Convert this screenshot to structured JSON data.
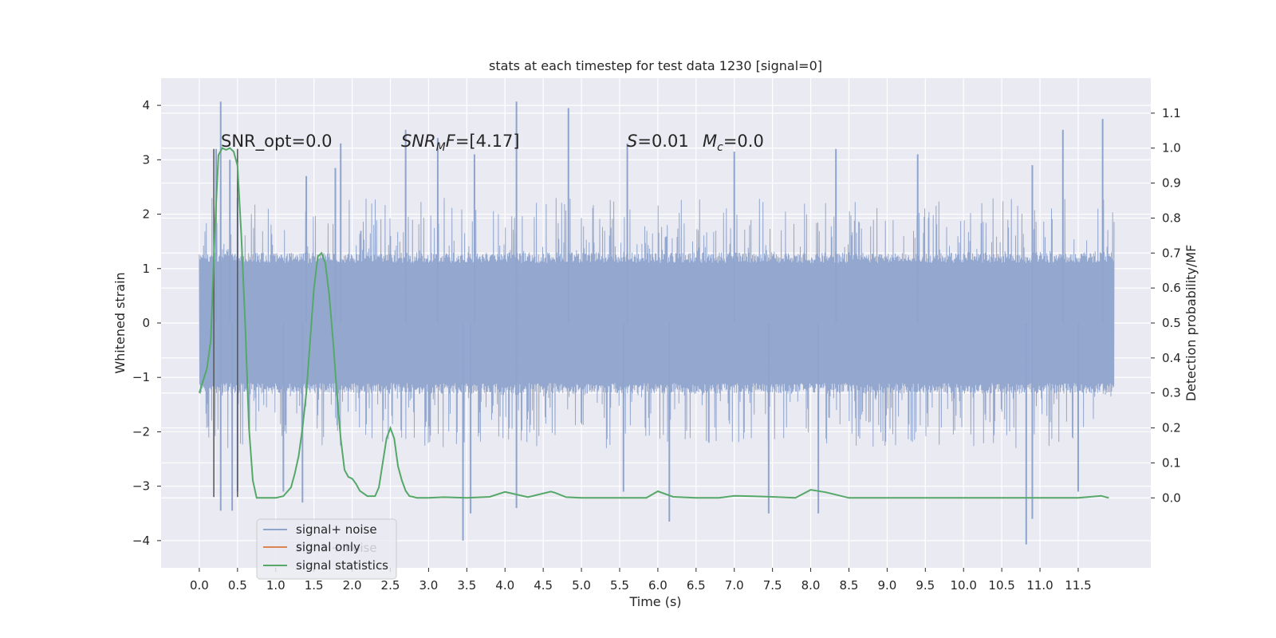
{
  "chart_data": {
    "type": "line",
    "title": "stats at each timestep for test data 1230 [signal=0]",
    "xlabel": "Time (s)",
    "ylabel_left": "Whitened strain",
    "ylabel_right": "Detection probability/MF",
    "xlim": [
      -0.5,
      12.45
    ],
    "ylim_left": [
      -4.5,
      4.5
    ],
    "ylim_right": [
      -0.2,
      1.2
    ],
    "x_ticks": [
      0.0,
      0.5,
      1.0,
      1.5,
      2.0,
      2.5,
      3.0,
      3.5,
      4.0,
      4.5,
      5.0,
      5.5,
      6.0,
      6.5,
      7.0,
      7.5,
      8.0,
      8.5,
      9.0,
      9.5,
      10.0,
      10.5,
      11.0,
      11.5
    ],
    "x_tick_labels": [
      "0.0",
      "0.5",
      "1.0",
      "1.5",
      "2.0",
      "2.5",
      "3.0",
      "3.5",
      "4.0",
      "4.5",
      "5.0",
      "5.5",
      "6.0",
      "6.5",
      "7.0",
      "7.5",
      "8.0",
      "8.5",
      "9.0",
      "9.5",
      "10.0",
      "10.5",
      "11.0",
      "11.5"
    ],
    "y_left_ticks": [
      4,
      3,
      2,
      1,
      0,
      -1,
      -2,
      -3,
      -4
    ],
    "y_left_tick_labels": [
      "4",
      "3",
      "2",
      "1",
      "0",
      "−1",
      "−2",
      "−3",
      "−4"
    ],
    "y_right_ticks": [
      1.1,
      1.0,
      0.9,
      0.8,
      0.7,
      0.6,
      0.5,
      0.4,
      0.3,
      0.2,
      0.1,
      0.0
    ],
    "y_right_tick_labels": [
      "1.1",
      "1.0",
      "0.9",
      "0.8",
      "0.7",
      "0.6",
      "0.5",
      "0.4",
      "0.3",
      "0.2",
      "0.1",
      "0.0"
    ],
    "grid": true,
    "legend_position": "lower-left",
    "vertical_lines_x": [
      0.19,
      0.5
    ],
    "vertical_lines_ylim_left": [
      -3.2,
      3.2
    ],
    "noise_series": {
      "name": "signal+ noise",
      "color": "#8fa4cc",
      "x_range": [
        0.0,
        11.97
      ],
      "typical_envelope": [
        -1.3,
        1.3
      ],
      "outer_envelope": [
        -1.9,
        1.9
      ],
      "peaks": [
        {
          "x": 0.28,
          "y": 4.07
        },
        {
          "x": 0.22,
          "y": 3.2
        },
        {
          "x": 0.4,
          "y": 3.0
        },
        {
          "x": 0.5,
          "y": 2.3
        },
        {
          "x": 1.4,
          "y": 2.7
        },
        {
          "x": 1.78,
          "y": 2.85
        },
        {
          "x": 1.85,
          "y": 3.3
        },
        {
          "x": 2.7,
          "y": 3.55
        },
        {
          "x": 3.12,
          "y": 3.4
        },
        {
          "x": 3.6,
          "y": 3.1
        },
        {
          "x": 4.15,
          "y": 4.07
        },
        {
          "x": 4.83,
          "y": 3.95
        },
        {
          "x": 5.6,
          "y": 3.3
        },
        {
          "x": 7.0,
          "y": 3.15
        },
        {
          "x": 8.33,
          "y": 3.2
        },
        {
          "x": 9.4,
          "y": 3.1
        },
        {
          "x": 11.3,
          "y": 3.55
        },
        {
          "x": 11.82,
          "y": 3.75
        },
        {
          "x": 10.9,
          "y": 2.9
        }
      ],
      "troughs": [
        {
          "x": 0.28,
          "y": -3.45
        },
        {
          "x": 0.43,
          "y": -3.45
        },
        {
          "x": 0.5,
          "y": -3.1
        },
        {
          "x": 1.1,
          "y": -3.1
        },
        {
          "x": 1.35,
          "y": -3.3
        },
        {
          "x": 3.45,
          "y": -4.0
        },
        {
          "x": 3.55,
          "y": -3.5
        },
        {
          "x": 4.15,
          "y": -3.4
        },
        {
          "x": 5.55,
          "y": -3.1
        },
        {
          "x": 6.15,
          "y": -3.65
        },
        {
          "x": 7.45,
          "y": -3.5
        },
        {
          "x": 8.1,
          "y": -3.5
        },
        {
          "x": 10.82,
          "y": -4.07
        },
        {
          "x": 10.9,
          "y": -3.6
        },
        {
          "x": 11.5,
          "y": -3.1
        }
      ]
    },
    "signal_only_series": {
      "name": "signal only",
      "color": "#dd8452",
      "values": []
    },
    "statistics_series": {
      "name": "signal statistics",
      "color": "#55a868",
      "x": [
        0.0,
        0.1,
        0.15,
        0.2,
        0.25,
        0.3,
        0.35,
        0.4,
        0.45,
        0.5,
        0.55,
        0.6,
        0.65,
        0.7,
        0.75,
        0.8,
        0.9,
        1.0,
        1.1,
        1.2,
        1.25,
        1.3,
        1.35,
        1.4,
        1.45,
        1.5,
        1.55,
        1.6,
        1.65,
        1.7,
        1.75,
        1.8,
        1.85,
        1.9,
        1.95,
        2.0,
        2.05,
        2.1,
        2.2,
        2.3,
        2.35,
        2.4,
        2.45,
        2.5,
        2.55,
        2.6,
        2.65,
        2.7,
        2.75,
        2.8,
        2.85,
        2.9,
        3.0,
        3.2,
        3.5,
        3.8,
        4.0,
        4.3,
        4.6,
        4.65,
        4.8,
        5.0,
        5.5,
        5.85,
        6.0,
        6.2,
        6.5,
        6.8,
        7.0,
        7.2,
        7.5,
        7.8,
        8.0,
        8.2,
        8.5,
        9.0,
        9.5,
        10.0,
        10.5,
        11.0,
        11.5,
        11.8,
        11.9
      ],
      "y": [
        0.3,
        0.37,
        0.45,
        0.75,
        0.98,
        1.0,
        0.995,
        1.0,
        0.99,
        0.95,
        0.75,
        0.5,
        0.2,
        0.05,
        0.0,
        0.0,
        0.0,
        0.0,
        0.005,
        0.03,
        0.07,
        0.12,
        0.2,
        0.3,
        0.45,
        0.6,
        0.69,
        0.7,
        0.67,
        0.58,
        0.45,
        0.3,
        0.17,
        0.08,
        0.06,
        0.055,
        0.04,
        0.02,
        0.005,
        0.005,
        0.03,
        0.1,
        0.17,
        0.2,
        0.17,
        0.09,
        0.05,
        0.02,
        0.005,
        0.003,
        0.0,
        0.0,
        0.0,
        0.002,
        0.0,
        0.003,
        0.017,
        0.002,
        0.018,
        0.015,
        0.002,
        0.0,
        0.0,
        0.0,
        0.019,
        0.003,
        0.0,
        0.0,
        0.006,
        0.005,
        0.003,
        0.0,
        0.023,
        0.016,
        0.0,
        0.0,
        0.0,
        0.0,
        0.0,
        0.0,
        0.0,
        0.006,
        0.0
      ]
    },
    "annotations": [
      {
        "id": "snr-opt",
        "text": "SNR_opt=0.0",
        "x": 0.21,
        "y_right": 1.0
      },
      {
        "id": "snr-mf",
        "text": "=[4.17]",
        "x": 2.62,
        "y_right": 1.0,
        "italic_prefix": "SNR",
        "subscript": "M",
        "italic_suffix": "F"
      },
      {
        "id": "s-value",
        "text": "=0.01",
        "x": 5.62,
        "y_right": 1.0,
        "italic_prefix": "S"
      },
      {
        "id": "mc-value",
        "text": "=0.0",
        "x": 6.62,
        "y_right": 1.0,
        "italic_prefix": "M",
        "subscript": "c"
      }
    ],
    "legend": [
      {
        "label": "signal+ noise",
        "color": "#8fa4cc"
      },
      {
        "label": "signal only",
        "color": "#dd8452"
      },
      {
        "label": "signal statistics",
        "color": "#55a868"
      }
    ],
    "legend_ghost_text": "signal+ noise",
    "colors": {
      "axes_bg": "#eaeaf2",
      "grid": "#ffffff",
      "text": "#262626",
      "vline": "#555555"
    }
  }
}
